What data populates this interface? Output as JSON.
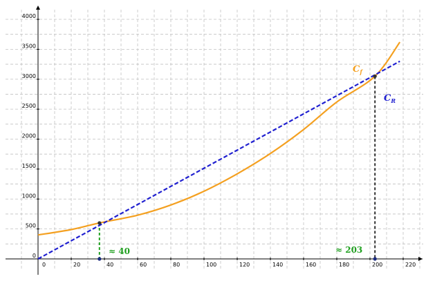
{
  "chart_data": {
    "type": "line",
    "grid": true,
    "xlim": [
      -20,
      230
    ],
    "ylim": [
      -50,
      4180
    ],
    "x_ticks": [
      0,
      20,
      40,
      60,
      80,
      100,
      120,
      140,
      160,
      180,
      200,
      220
    ],
    "y_ticks": [
      0,
      500,
      1000,
      1500,
      2000,
      2500,
      3000,
      3500,
      4000
    ],
    "x_tick_labels": [
      "0",
      "20",
      "40",
      "60",
      "80",
      "100",
      "120",
      "140",
      "160",
      "180",
      "200",
      "220"
    ],
    "y_tick_labels": [
      "0",
      "500",
      "1000",
      "1500",
      "2000",
      "2500",
      "3000",
      "3500",
      "4000"
    ],
    "series": [
      {
        "name": "C",
        "subscript": "f",
        "color": "#f4a020",
        "style": "solid",
        "x": [
          0,
          20,
          37,
          60,
          80,
          100,
          120,
          140,
          160,
          180,
          203,
          218
        ],
        "y": [
          400,
          490,
          600,
          730,
          900,
          1130,
          1420,
          1760,
          2160,
          2620,
          3050,
          3620
        ]
      },
      {
        "name": "C",
        "subscript": "R",
        "color": "#2020d0",
        "style": "dashed",
        "x": [
          0,
          218
        ],
        "y": [
          0,
          3300
        ]
      }
    ],
    "intersections": [
      {
        "x": 37,
        "y": 600,
        "label": "≈ 40",
        "color": "#20a020"
      },
      {
        "x": 203,
        "y": 3050,
        "label": "≈ 203",
        "color": "#303030"
      }
    ]
  }
}
